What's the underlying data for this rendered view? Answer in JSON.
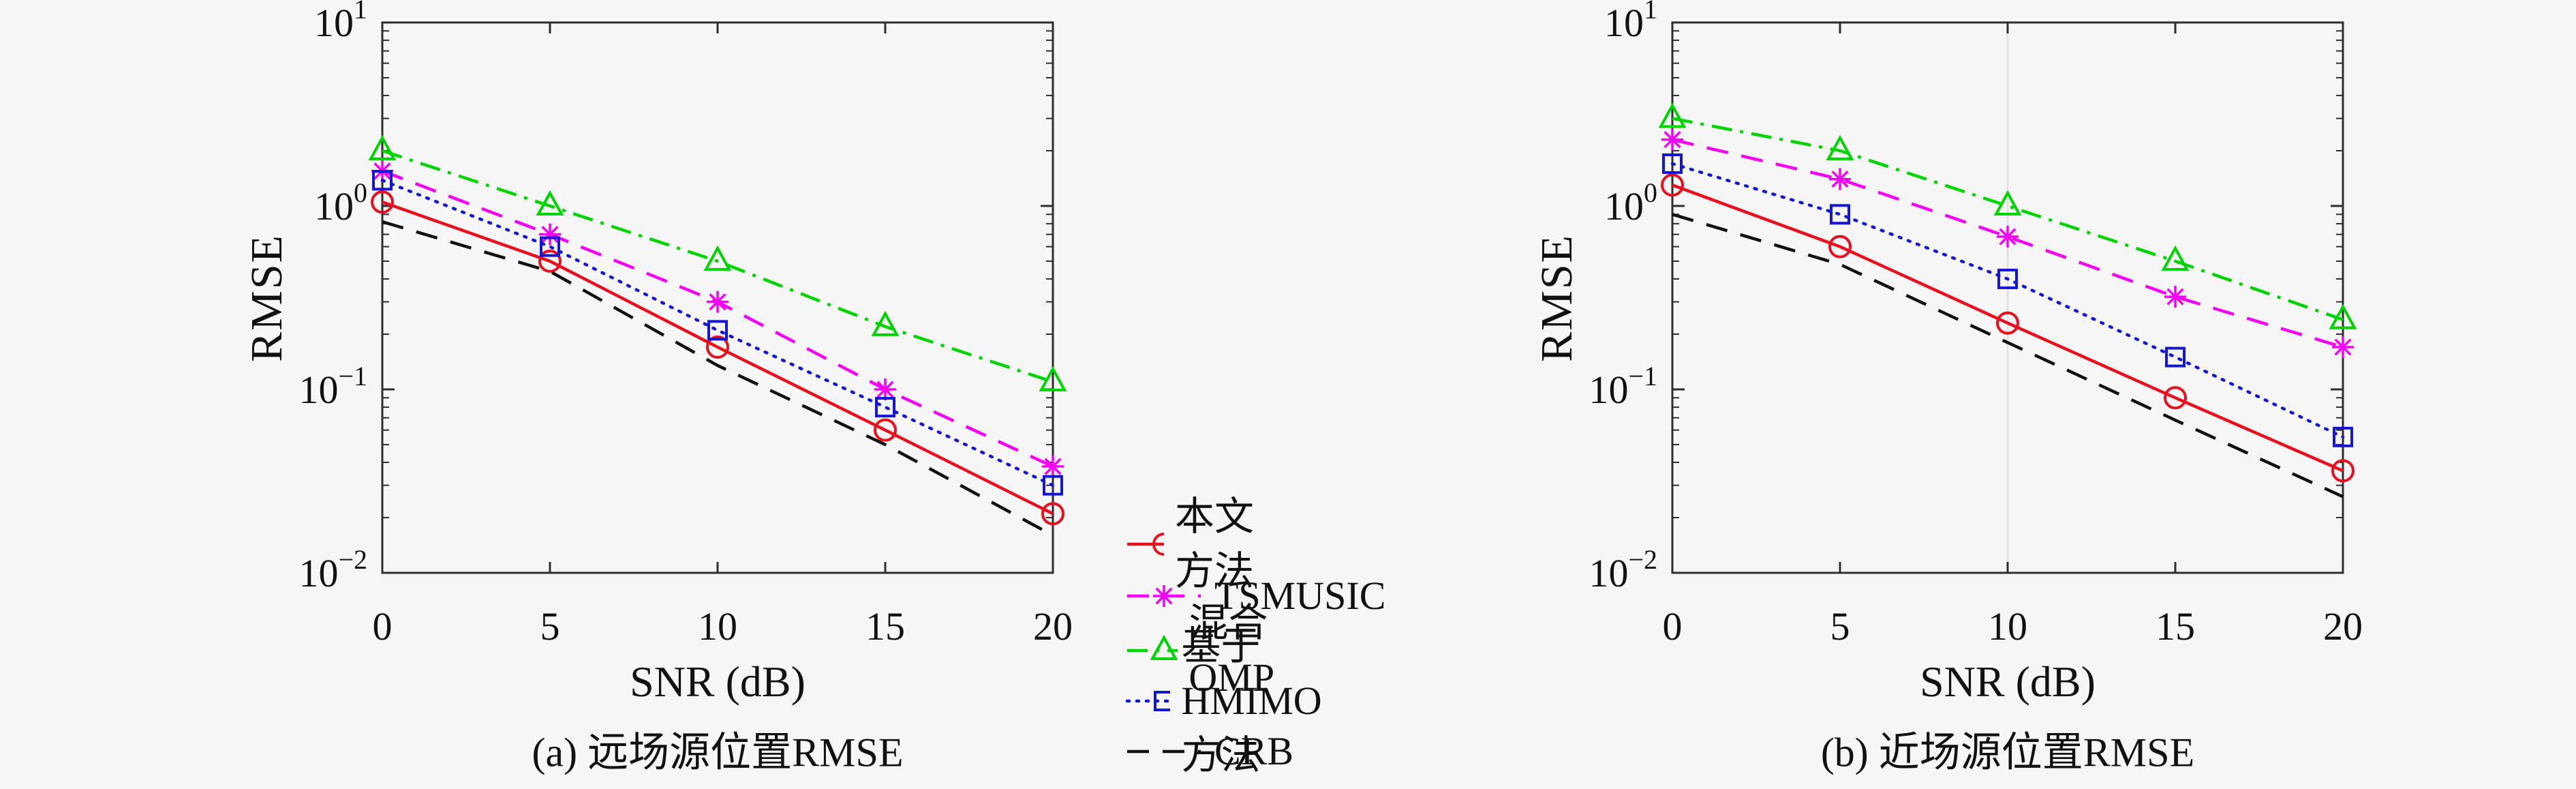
{
  "page": {
    "background": "#f6f6f6"
  },
  "axis": {
    "xlabel": "SNR (dB)",
    "ylabel": "RMSE",
    "x_ticks": [
      "0",
      "5",
      "10",
      "15",
      "20"
    ],
    "y_tick_base": "10",
    "y_tick_exponents": [
      "1",
      "0",
      "-1",
      "-2"
    ]
  },
  "legend": {
    "items": [
      {
        "label": "本文方法"
      },
      {
        "label": "TSMUSIC"
      },
      {
        "label": "混合OMP"
      },
      {
        "label": "基于HMIMO方法"
      },
      {
        "label": "CRB"
      }
    ]
  },
  "chart_data": [
    {
      "type": "line",
      "caption": "(a) 远场源位置RMSE",
      "xlabel": "SNR (dB)",
      "ylabel": "RMSE",
      "x": [
        0,
        5,
        10,
        15,
        20
      ],
      "xlim": [
        0,
        20
      ],
      "yscale": "log",
      "ylim": [
        0.01,
        10
      ],
      "grid": false,
      "legend_position": "below-center",
      "series": [
        {
          "name": "本文方法",
          "color": "#e8101e",
          "dash": "solid",
          "marker": "circle",
          "values": [
            1.05,
            0.5,
            0.17,
            0.06,
            0.021
          ]
        },
        {
          "name": "TSMUSIC",
          "color": "#f500f5",
          "dash": "dashed",
          "marker": "asterisk",
          "values": [
            1.55,
            0.7,
            0.3,
            0.1,
            0.038
          ]
        },
        {
          "name": "混合OMP",
          "color": "#00d400",
          "dash": "dashdot",
          "marker": "triangle",
          "values": [
            2.0,
            1.0,
            0.5,
            0.22,
            0.11
          ]
        },
        {
          "name": "基于HMIMO方法",
          "color": "#1515d6",
          "dash": "dotted",
          "marker": "square",
          "values": [
            1.38,
            0.6,
            0.21,
            0.08,
            0.03
          ]
        },
        {
          "name": "CRB",
          "color": "#111111",
          "dash": "dashed",
          "marker": "none",
          "values": [
            0.82,
            0.44,
            0.135,
            0.05,
            0.016
          ]
        }
      ]
    },
    {
      "type": "line",
      "caption": "(b) 近场源位置RMSE",
      "xlabel": "SNR (dB)",
      "ylabel": "RMSE",
      "x": [
        0,
        5,
        10,
        15,
        20
      ],
      "xlim": [
        0,
        20
      ],
      "yscale": "log",
      "ylim": [
        0.01,
        10
      ],
      "grid": false,
      "series": [
        {
          "name": "本文方法",
          "color": "#e8101e",
          "dash": "solid",
          "marker": "circle",
          "values": [
            1.3,
            0.6,
            0.23,
            0.09,
            0.036
          ]
        },
        {
          "name": "TSMUSIC",
          "color": "#f500f5",
          "dash": "dashed",
          "marker": "asterisk",
          "values": [
            2.3,
            1.4,
            0.68,
            0.32,
            0.17
          ]
        },
        {
          "name": "混合OMP",
          "color": "#00d400",
          "dash": "dashdot",
          "marker": "triangle",
          "values": [
            3.0,
            2.0,
            1.0,
            0.5,
            0.24
          ]
        },
        {
          "name": "基于HMIMO方法",
          "color": "#1515d6",
          "dash": "dotted",
          "marker": "square",
          "values": [
            1.7,
            0.9,
            0.4,
            0.15,
            0.055
          ]
        },
        {
          "name": "CRB",
          "color": "#111111",
          "dash": "dashed",
          "marker": "none",
          "values": [
            0.9,
            0.48,
            0.18,
            0.068,
            0.026
          ]
        }
      ]
    }
  ]
}
